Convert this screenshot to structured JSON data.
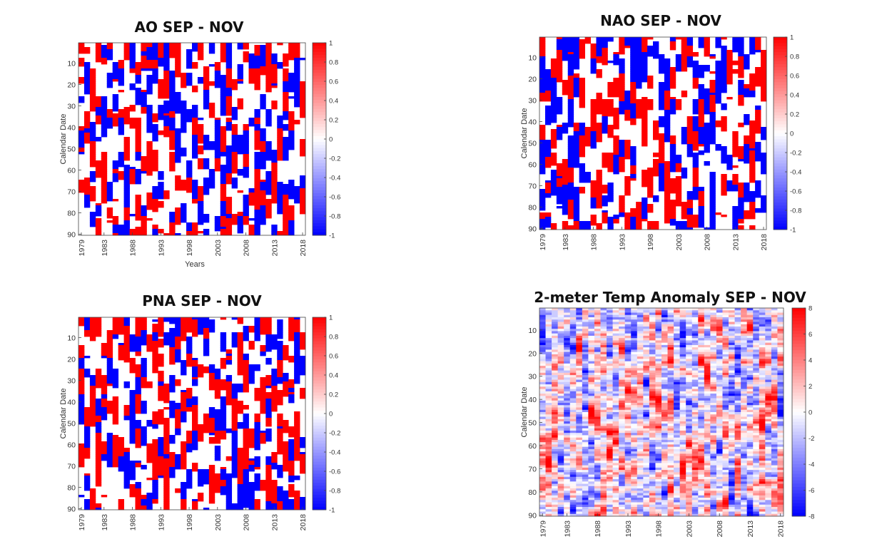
{
  "chart_data": [
    {
      "type": "heatmap",
      "title": "AO SEP - NOV",
      "xlabel": "Years",
      "ylabel": "Calendar Date",
      "xticks": [
        "1979",
        "1983",
        "1988",
        "1993",
        "1998",
        "2003",
        "2008",
        "2013",
        "2018"
      ],
      "yticks": [
        "10",
        "20",
        "30",
        "40",
        "50",
        "60",
        "70",
        "80",
        "90"
      ],
      "xlim": [
        1979,
        2018
      ],
      "ylim": [
        1,
        90
      ],
      "colorbar": {
        "ticks": [
          "1",
          "0.8",
          "0.6",
          "0.4",
          "0.2",
          "0",
          "-0.2",
          "-0.4",
          "-0.6",
          "-0.8",
          "-1"
        ],
        "range": [
          -1,
          1
        ]
      },
      "colors": {
        "positive": "#ff0000",
        "negative": "#0000ff",
        "neutral": "#ffffff"
      },
      "values_encoding": "ternary -1/0/1 per (calendar date, year) cell"
    },
    {
      "type": "heatmap",
      "title": "NAO SEP - NOV",
      "xlabel": "",
      "ylabel": "Calendar Date",
      "xticks": [
        "1979",
        "1983",
        "1988",
        "1993",
        "1998",
        "2003",
        "2008",
        "2013",
        "2018"
      ],
      "yticks": [
        "10",
        "20",
        "30",
        "40",
        "50",
        "60",
        "70",
        "80",
        "90"
      ],
      "xlim": [
        1979,
        2018
      ],
      "ylim": [
        1,
        90
      ],
      "colorbar": {
        "ticks": [
          "1",
          "0.8",
          "0.6",
          "0.4",
          "0.2",
          "0",
          "-0.2",
          "-0.4",
          "-0.6",
          "-0.8",
          "-1"
        ],
        "range": [
          -1,
          1
        ]
      },
      "colors": {
        "positive": "#ff0000",
        "negative": "#0000ff",
        "neutral": "#ffffff"
      },
      "values_encoding": "ternary -1/0/1 per (calendar date, year) cell"
    },
    {
      "type": "heatmap",
      "title": "PNA SEP - NOV",
      "xlabel": "",
      "ylabel": "Calendar Date",
      "xticks": [
        "1979",
        "1983",
        "1988",
        "1993",
        "1998",
        "2003",
        "2008",
        "2013",
        "2018"
      ],
      "yticks": [
        "10",
        "20",
        "30",
        "40",
        "50",
        "60",
        "70",
        "80",
        "90"
      ],
      "xlim": [
        1979,
        2018
      ],
      "ylim": [
        1,
        90
      ],
      "colorbar": {
        "ticks": [
          "1",
          "0.8",
          "0.6",
          "0.4",
          "0.2",
          "0",
          "-0.2",
          "-0.4",
          "-0.6",
          "-0.8",
          "-1"
        ],
        "range": [
          -1,
          1
        ]
      },
      "colors": {
        "positive": "#ff0000",
        "negative": "#0000ff",
        "neutral": "#ffffff"
      },
      "values_encoding": "ternary -1/0/1 per (calendar date, year) cell"
    },
    {
      "type": "heatmap",
      "title": "2-meter Temp Anomaly SEP - NOV",
      "xlabel": "",
      "ylabel": "Calendar Date",
      "xticks": [
        "1979",
        "1983",
        "1988",
        "1993",
        "1998",
        "2003",
        "2008",
        "2013",
        "2018"
      ],
      "yticks": [
        "10",
        "20",
        "30",
        "40",
        "50",
        "60",
        "70",
        "80",
        "90"
      ],
      "xlim": [
        1979,
        2018
      ],
      "ylim": [
        1,
        90
      ],
      "colorbar": {
        "ticks": [
          "8",
          "6",
          "4",
          "2",
          "0",
          "-2",
          "-4",
          "-6",
          "-8"
        ],
        "range": [
          -8,
          8
        ]
      },
      "colors": {
        "positive": "#ff0000",
        "negative": "#0000ff",
        "neutral": "#ffffff"
      },
      "values_encoding": "continuous anomaly per (calendar date, year) cell"
    }
  ]
}
